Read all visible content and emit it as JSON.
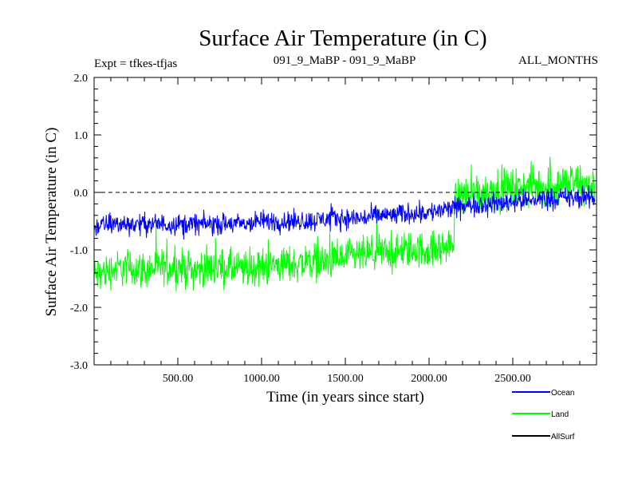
{
  "chart_data": {
    "type": "line",
    "title": "Surface Air Temperature (in C)",
    "subtitle_left": "Expt = tfkes-tfjas",
    "subtitle_center": "091_9_MaBP - 091_9_MaBP",
    "subtitle_right": "ALL_MONTHS",
    "xlabel": "Time (in years since start)",
    "ylabel": "Surface Air Temperature (in C)",
    "xlim": [
      0,
      3000
    ],
    "ylim": [
      -3.0,
      2.0
    ],
    "xticks": [
      500,
      1000,
      1500,
      2000,
      2500
    ],
    "xtick_labels": [
      "500.00",
      "1000.00",
      "1500.00",
      "2000.00",
      "2500.00"
    ],
    "yticks": [
      2.0,
      1.0,
      0.0,
      -1.0,
      -2.0,
      -3.0
    ],
    "ytick_labels": [
      "2.0",
      "1.0",
      "0.0",
      "-1.0",
      "-2.0",
      "-3.0"
    ],
    "reference_line_y": 0.0,
    "grid": false,
    "legend_position": "bottom-right",
    "series": [
      {
        "name": "Land",
        "color": "#00ff00",
        "x": [
          0,
          100,
          200,
          300,
          400,
          500,
          600,
          700,
          800,
          900,
          1000,
          1100,
          1200,
          1300,
          1400,
          1500,
          1600,
          1700,
          1800,
          1900,
          2000,
          2100,
          2140,
          2160,
          2200,
          2300,
          2400,
          2500,
          2600,
          2700,
          2800,
          2900,
          2990
        ],
        "values": [
          -1.45,
          -1.35,
          -1.3,
          -1.35,
          -1.3,
          -1.3,
          -1.35,
          -1.3,
          -1.3,
          -1.35,
          -1.3,
          -1.25,
          -1.25,
          -1.2,
          -1.2,
          -1.15,
          -1.1,
          -1.05,
          -1.05,
          -1.0,
          -1.0,
          -0.95,
          -0.95,
          -0.1,
          -0.05,
          0.0,
          0.05,
          0.05,
          0.1,
          0.1,
          0.15,
          0.15,
          0.1
        ],
        "spread": [
          0.35,
          0.35,
          0.35,
          0.35,
          0.35,
          0.35,
          0.35,
          0.35,
          0.35,
          0.35,
          0.35,
          0.35,
          0.35,
          0.35,
          0.35,
          0.35,
          0.35,
          0.35,
          0.35,
          0.35,
          0.35,
          0.35,
          0.35,
          0.4,
          0.4,
          0.4,
          0.4,
          0.4,
          0.4,
          0.4,
          0.4,
          0.4,
          0.4
        ]
      },
      {
        "name": "Ocean",
        "color": "#0000ff",
        "x": [
          0,
          100,
          200,
          300,
          400,
          500,
          600,
          700,
          800,
          900,
          1000,
          1100,
          1200,
          1300,
          1400,
          1500,
          1600,
          1700,
          1800,
          1900,
          2000,
          2100,
          2200,
          2300,
          2400,
          2500,
          2600,
          2700,
          2800,
          2900,
          2990
        ],
        "values": [
          -0.6,
          -0.55,
          -0.55,
          -0.55,
          -0.55,
          -0.55,
          -0.55,
          -0.55,
          -0.55,
          -0.55,
          -0.5,
          -0.5,
          -0.5,
          -0.5,
          -0.45,
          -0.45,
          -0.45,
          -0.4,
          -0.4,
          -0.35,
          -0.35,
          -0.3,
          -0.25,
          -0.2,
          -0.2,
          -0.15,
          -0.15,
          -0.1,
          -0.1,
          -0.1,
          -0.1
        ],
        "spread": [
          0.2,
          0.2,
          0.2,
          0.2,
          0.2,
          0.2,
          0.2,
          0.2,
          0.2,
          0.2,
          0.2,
          0.2,
          0.2,
          0.2,
          0.2,
          0.2,
          0.2,
          0.2,
          0.2,
          0.2,
          0.2,
          0.2,
          0.2,
          0.2,
          0.2,
          0.2,
          0.2,
          0.2,
          0.2,
          0.2,
          0.2
        ]
      },
      {
        "name": "AllSurf",
        "color": "#000000",
        "x": [],
        "values": [],
        "spread": []
      }
    ],
    "legend": [
      {
        "name": "Ocean",
        "color": "#0000ff"
      },
      {
        "name": "Land",
        "color": "#00ff00"
      },
      {
        "name": "AllSurf",
        "color": "#000000"
      }
    ]
  }
}
